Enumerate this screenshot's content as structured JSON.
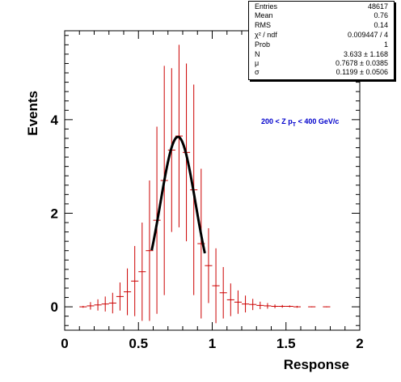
{
  "chart_data": {
    "type": "scatter",
    "xlabel": "Response",
    "ylabel": "Events",
    "xlim": [
      0,
      2
    ],
    "ylim": [
      -0.5,
      5.9
    ],
    "x_ticks": [
      "0",
      "0.5",
      "1",
      "1.5",
      "2"
    ],
    "y_ticks": [
      "0",
      "2",
      "4"
    ],
    "annotation": {
      "text": "200 < Z p",
      "subscript": "T",
      "suffix": " < 400 GeV/c",
      "color": "#0000cc"
    },
    "series": [
      {
        "marker": "error-bar",
        "color": "#cc0000",
        "points": [
          {
            "x": 0.125,
            "y": 0.0,
            "err": 0.02,
            "xerr": 0.025
          },
          {
            "x": 0.175,
            "y": 0.02,
            "err": 0.08,
            "xerr": 0.025
          },
          {
            "x": 0.225,
            "y": 0.04,
            "err": 0.12,
            "xerr": 0.025
          },
          {
            "x": 0.275,
            "y": 0.06,
            "err": 0.16,
            "xerr": 0.025
          },
          {
            "x": 0.325,
            "y": 0.08,
            "err": 0.22,
            "xerr": 0.025
          },
          {
            "x": 0.375,
            "y": 0.22,
            "err": 0.3,
            "xerr": 0.025
          },
          {
            "x": 0.425,
            "y": 0.32,
            "err": 0.5,
            "xerr": 0.025
          },
          {
            "x": 0.475,
            "y": 0.55,
            "err": 0.75,
            "xerr": 0.025
          },
          {
            "x": 0.525,
            "y": 0.75,
            "err": 1.05,
            "xerr": 0.025
          },
          {
            "x": 0.575,
            "y": 1.2,
            "err": 1.5,
            "xerr": 0.025
          },
          {
            "x": 0.625,
            "y": 1.85,
            "err": 2.0,
            "xerr": 0.025
          },
          {
            "x": 0.675,
            "y": 2.7,
            "err": 2.45,
            "xerr": 0.025
          },
          {
            "x": 0.725,
            "y": 3.35,
            "err": 1.75,
            "xerr": 0.025
          },
          {
            "x": 0.775,
            "y": 3.65,
            "err": 1.95,
            "xerr": 0.025
          },
          {
            "x": 0.825,
            "y": 3.3,
            "err": 1.9,
            "xerr": 0.025
          },
          {
            "x": 0.875,
            "y": 2.5,
            "err": 2.25,
            "xerr": 0.025
          },
          {
            "x": 0.925,
            "y": 1.35,
            "err": 1.6,
            "xerr": 0.025
          },
          {
            "x": 0.975,
            "y": 0.88,
            "err": 0.8,
            "xerr": 0.025
          },
          {
            "x": 1.025,
            "y": 0.45,
            "err": 0.8,
            "xerr": 0.025
          },
          {
            "x": 1.075,
            "y": 0.3,
            "err": 0.55,
            "xerr": 0.025
          },
          {
            "x": 1.125,
            "y": 0.15,
            "err": 0.35,
            "xerr": 0.025
          },
          {
            "x": 1.175,
            "y": 0.1,
            "err": 0.25,
            "xerr": 0.025
          },
          {
            "x": 1.225,
            "y": 0.06,
            "err": 0.18,
            "xerr": 0.025
          },
          {
            "x": 1.275,
            "y": 0.05,
            "err": 0.12,
            "xerr": 0.025
          },
          {
            "x": 1.325,
            "y": 0.03,
            "err": 0.08,
            "xerr": 0.025
          },
          {
            "x": 1.375,
            "y": 0.02,
            "err": 0.06,
            "xerr": 0.025
          },
          {
            "x": 1.425,
            "y": 0.01,
            "err": 0.04,
            "xerr": 0.025
          },
          {
            "x": 1.475,
            "y": 0.01,
            "err": 0.03,
            "xerr": 0.025
          },
          {
            "x": 1.525,
            "y": 0.01,
            "err": 0.02,
            "xerr": 0.025
          },
          {
            "x": 1.575,
            "y": 0.0,
            "err": 0.02,
            "xerr": 0.025
          },
          {
            "x": 1.675,
            "y": 0.0,
            "err": 0.01,
            "xerr": 0.025
          },
          {
            "x": 1.775,
            "y": 0.0,
            "err": 0.01,
            "xerr": 0.025
          }
        ]
      },
      {
        "type": "line",
        "fit": "gaussian",
        "color": "#000000",
        "N": 3.633,
        "mu": 0.7678,
        "sigma": 0.1199,
        "range": [
          0.59,
          0.95
        ]
      }
    ]
  },
  "stats": {
    "rows": [
      {
        "name": "Entries",
        "value": "48617"
      },
      {
        "name": "Mean",
        "value": "0.76"
      },
      {
        "name": "RMS",
        "value": "0.14"
      },
      {
        "name": "χ² / ndf",
        "value": "0.009447 / 4"
      },
      {
        "name": "Prob",
        "value": "1"
      },
      {
        "name": "N",
        "value": "3.633 ± 1.168"
      },
      {
        "name": "μ",
        "value": "0.7678 ± 0.0385"
      },
      {
        "name": "σ",
        "value": "0.1199 ± 0.0506"
      }
    ]
  }
}
